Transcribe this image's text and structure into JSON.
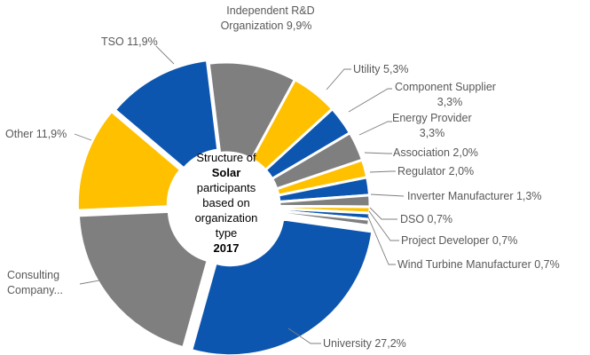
{
  "chart_data": {
    "type": "pie",
    "variant": "donut",
    "center_text": {
      "line1": "Structure of",
      "line2": "Solar",
      "line3": "participants",
      "line4": "based on",
      "line5": "organization",
      "line6": "type",
      "line7": "2017"
    },
    "slices": [
      {
        "label": "Independent R&D Organization 9,9%",
        "value": 9.9,
        "color": "#7f7f7f"
      },
      {
        "label": "Utility 5,3%",
        "value": 5.3,
        "color": "#ffc000"
      },
      {
        "label": "Component Supplier 3,3%",
        "value": 3.3,
        "color": "#0d56b0"
      },
      {
        "label": "Energy Provider 3,3%",
        "value": 3.3,
        "color": "#7f7f7f"
      },
      {
        "label": "Association 2,0%",
        "value": 2.0,
        "color": "#ffc000"
      },
      {
        "label": "Regulator 2,0%",
        "value": 2.0,
        "color": "#0d56b0"
      },
      {
        "label": "Inverter Manufacturer 1,3%",
        "value": 1.3,
        "color": "#7f7f7f"
      },
      {
        "label": "DSO 0,7%",
        "value": 0.7,
        "color": "#ffc000"
      },
      {
        "label": "Project Developer 0,7%",
        "value": 0.7,
        "color": "#0d56b0"
      },
      {
        "label": "Wind Turbine Manufacturer 0,7%",
        "value": 0.7,
        "color": "#7f7f7f"
      },
      {
        "label": "University 27,2%",
        "value": 27.2,
        "color": "#0d56b0"
      },
      {
        "label": "Consulting Company...",
        "value": 20.0,
        "color": "#7f7f7f"
      },
      {
        "label": "Other 11,9%",
        "value": 11.9,
        "color": "#ffc000"
      },
      {
        "label": "TSO 11,9%",
        "value": 11.9,
        "color": "#0d56b0"
      }
    ],
    "label_text": {
      "independent_rd_line1": "Independent R&D",
      "independent_rd_line2": "Organization 9,9%",
      "utility": "Utility 5,3%",
      "component_supplier_line1": "Component Supplier",
      "component_supplier_line2": "3,3%",
      "energy_provider_line1": "Energy Provider",
      "energy_provider_line2": "3,3%",
      "association": "Association 2,0%",
      "regulator": "Regulator 2,0%",
      "inverter_manufacturer": "Inverter Manufacturer 1,3%",
      "dso": "DSO 0,7%",
      "project_developer": "Project Developer 0,7%",
      "wind_turbine_manufacturer": "Wind Turbine Manufacturer 0,7%",
      "university": "University 27,2%",
      "consulting_line1": "Consulting",
      "consulting_line2": "Company...",
      "other": "Other 11,9%",
      "tso": "TSO 11,9%"
    }
  }
}
